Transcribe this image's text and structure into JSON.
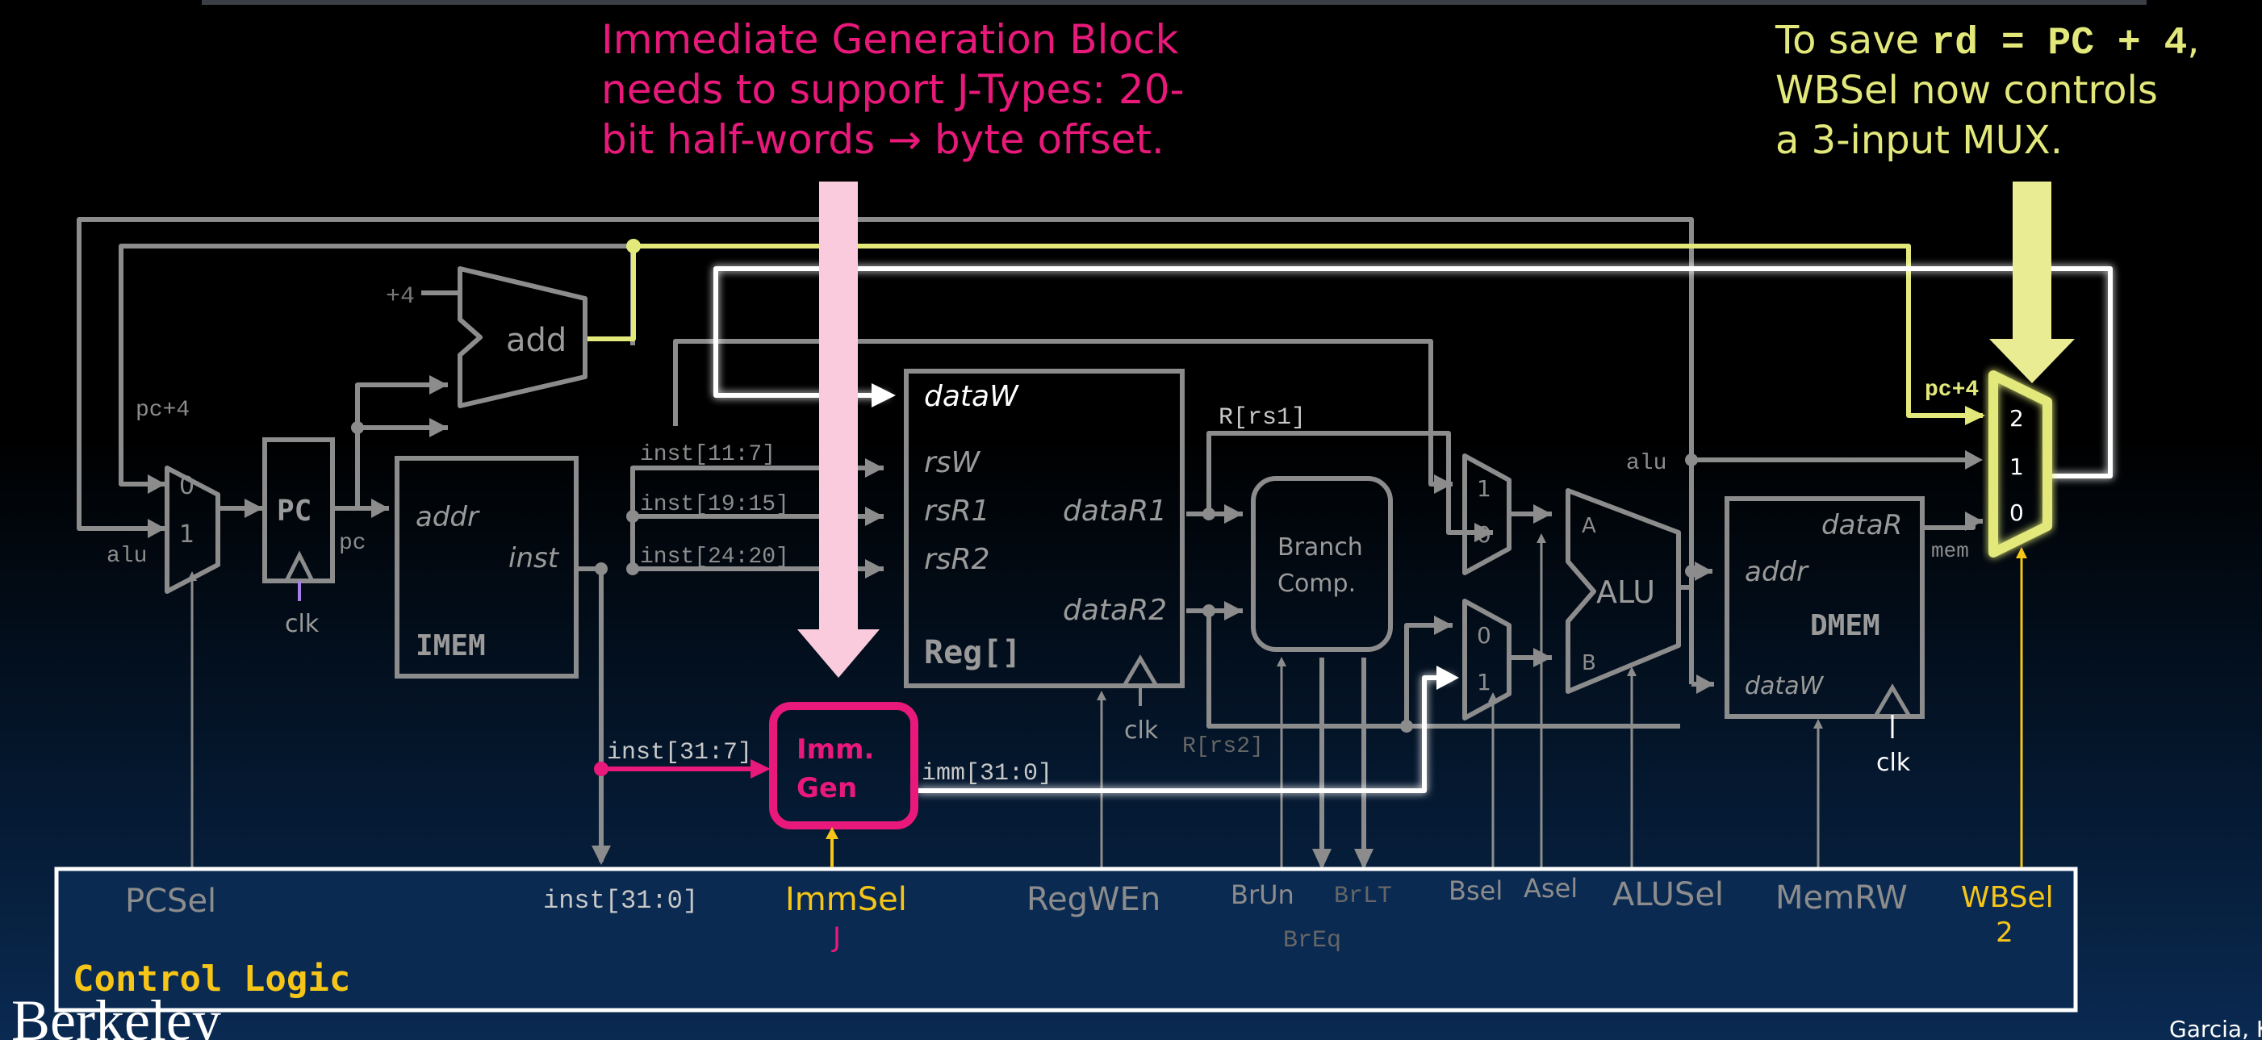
{
  "callouts": {
    "immgen_lines": [
      "Immediate Generation Block",
      "needs to support J-Types: 20-",
      "bit half-words → byte offset."
    ],
    "wbsel_line1_prefix": "To save ",
    "wbsel_line1_code": "rd = PC + 4",
    "wbsel_line1_suffix": ",",
    "wbsel_line2": "WBSel now controls",
    "wbsel_line3": "a 3-input MUX."
  },
  "blocks": {
    "add_label": "add",
    "plus4_label": "+4",
    "pc_label": "PC",
    "imem_addr": "addr",
    "imem_inst": "inst",
    "imem_title": "IMEM",
    "reg_dataw": "dataW",
    "reg_rsw": "rsW",
    "reg_rsr1": "rsR1",
    "reg_rsr2": "rsR2",
    "reg_datar1": "dataR1",
    "reg_datar2": "dataR2",
    "reg_title": "Reg[]",
    "immgen_line1": "Imm.",
    "immgen_line2": "Gen",
    "branch_line1": "Branch",
    "branch_line2": "Comp.",
    "alu_label": "ALU",
    "alu_a": "A",
    "alu_b": "B",
    "dmem_datar": "dataR",
    "dmem_addr": "addr",
    "dmem_title": "DMEM",
    "dmem_dataw": "dataW",
    "mux_pc_in0": "0",
    "mux_pc_in1": "1",
    "mux_a_in1": "1",
    "mux_a_in0": "0",
    "mux_b_in0": "0",
    "mux_b_in1": "1",
    "mux_wb_in2": "2",
    "mux_wb_in1": "1",
    "mux_wb_in0": "0"
  },
  "wires": {
    "pc4": "pc+4",
    "alu_left": "alu",
    "pc_out": "pc",
    "clk": "clk",
    "inst_11_7": "inst[11:7]",
    "inst_19_15": "inst[19:15]",
    "inst_24_20": "inst[24:20]",
    "inst_31_7": "inst[31:7]",
    "imm_31_0": "imm[31:0]",
    "r_rs1": "R[rs1]",
    "r_rs2": "R[rs2]",
    "alu_right": "alu",
    "pc4_right": "pc+4",
    "mem": "mem",
    "inst_31_0": "inst[31:0]"
  },
  "control": {
    "title": "Control Logic",
    "pcsel": "PCSel",
    "immsel": "ImmSel",
    "immsel_value": "J",
    "regwen": "RegWEn",
    "brun": "BrUn",
    "brlt": "BrLT",
    "breq": "BrEq",
    "bsel": "Bsel",
    "asel": "Asel",
    "alusel": "ALUSel",
    "memrw": "MemRW",
    "wbsel": "WBSel",
    "wbsel_value": "2"
  },
  "footer": {
    "berkeley": "Berkeley",
    "author": "Garcia, K"
  },
  "colors": {
    "gray": "#8c8c8c",
    "magenta": "#e8197a",
    "yellow": "#e2e87a",
    "gold": "#f5c518",
    "white": "#ffffff",
    "pink_arrow": "#f9cbdc",
    "yellow_arrow": "#e9ec93"
  }
}
